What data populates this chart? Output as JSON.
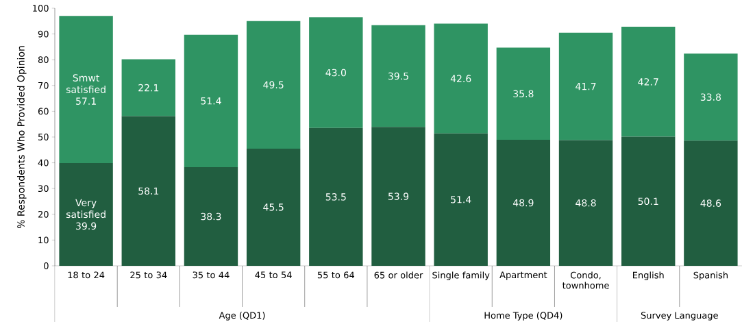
{
  "chart_data": {
    "type": "bar",
    "stacked": true,
    "ylabel": "% Respondents Who Provided Opinion",
    "categories": [
      "18 to 24",
      "25 to 34",
      "35 to 44",
      "45 to 54",
      "55 to 64",
      "65 or older",
      "Single family",
      "Apartment",
      "Condo, townhome",
      "English",
      "Spanish"
    ],
    "series": [
      {
        "name": "Very satisfied",
        "color": "#215e40",
        "values": [
          39.9,
          58.1,
          38.3,
          45.5,
          53.5,
          53.9,
          51.4,
          48.9,
          48.8,
          50.1,
          48.6
        ],
        "value_labels": [
          "39.9",
          "58.1",
          "38.3",
          "45.5",
          "53.5",
          "53.9",
          "51.4",
          "48.9",
          "48.8",
          "50.1",
          "48.6"
        ]
      },
      {
        "name": "Smwt satisfied",
        "color": "#2f9463",
        "values": [
          57.1,
          22.1,
          51.4,
          49.5,
          43.0,
          39.5,
          42.6,
          35.8,
          41.7,
          42.7,
          33.8
        ],
        "value_labels": [
          "57.1",
          "22.1",
          "51.4",
          "49.5",
          "43.0",
          "39.5",
          "42.6",
          "35.8",
          "41.7",
          "42.7",
          "33.8"
        ]
      }
    ],
    "ylim": [
      0,
      100
    ],
    "yticks": [
      0,
      10,
      20,
      30,
      40,
      50,
      60,
      70,
      80,
      90,
      100
    ],
    "grid": false,
    "annotations": [
      "Age (QD1)",
      "Home Type (QD4)",
      "Survey Language"
    ]
  }
}
